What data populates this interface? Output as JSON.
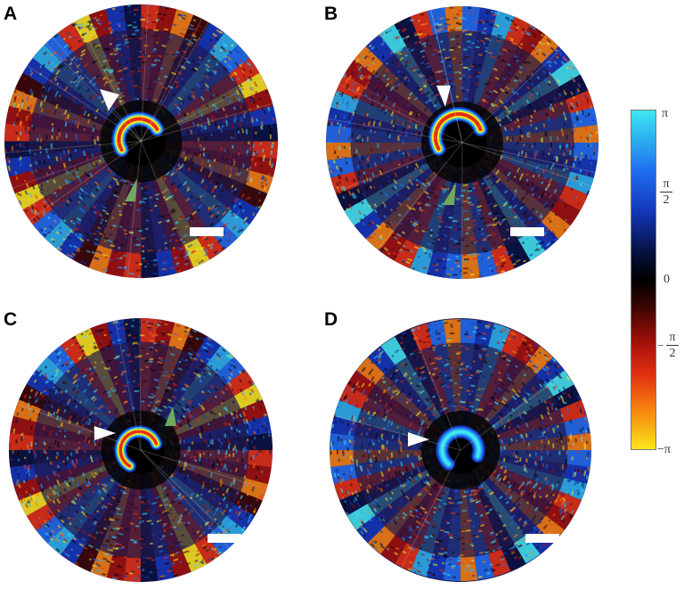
{
  "panels": [
    {
      "label": "A"
    },
    {
      "label": "B"
    },
    {
      "label": "C"
    },
    {
      "label": "D"
    }
  ],
  "colorbar": {
    "top_tick": "π",
    "upper_num": "π",
    "upper_den": "2",
    "zero": "0",
    "lower_sign": "−",
    "lower_num": "π",
    "lower_den": "2",
    "bottom_tick": "−π"
  },
  "colors": {
    "arrow_white": "#ffffff",
    "arrow_green": "#6faa5f",
    "background": "#ffffff"
  }
}
